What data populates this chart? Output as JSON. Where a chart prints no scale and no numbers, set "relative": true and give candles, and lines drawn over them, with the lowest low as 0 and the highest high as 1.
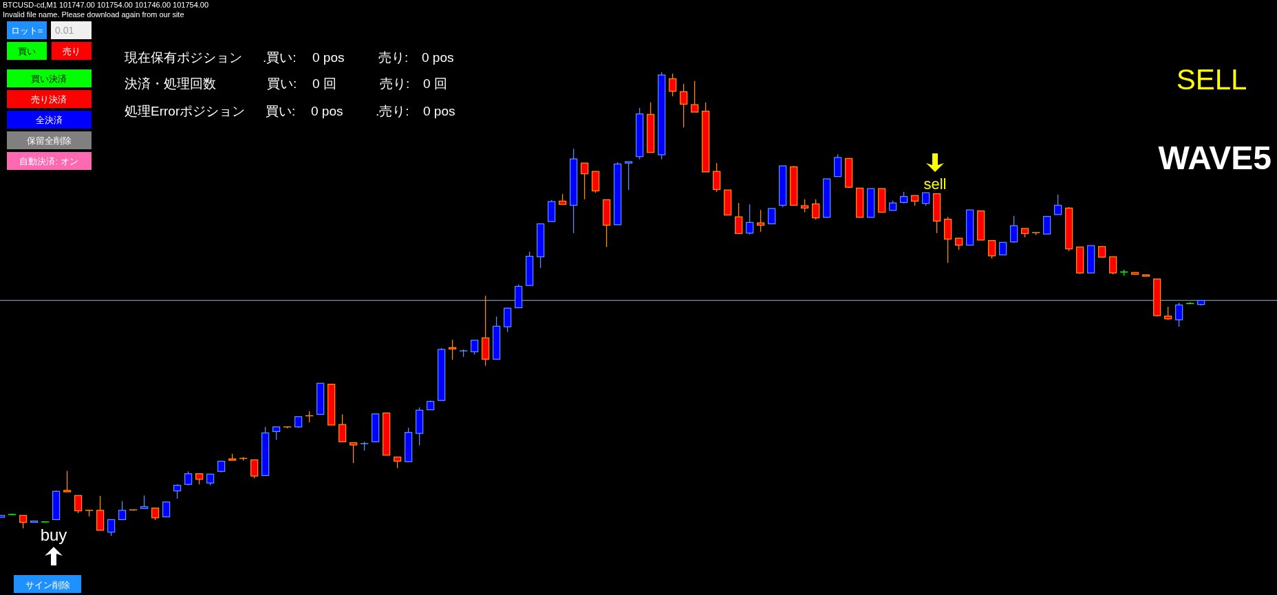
{
  "chart_data": {
    "type": "candlestick",
    "relative": true,
    "categories": [
      null,
      null,
      null,
      null,
      null,
      null,
      null,
      null,
      null,
      null,
      null,
      null,
      null,
      null,
      null,
      null,
      null,
      null,
      null,
      null,
      null,
      null,
      null,
      null,
      null,
      null,
      null,
      null,
      null,
      null,
      null,
      null,
      null,
      null,
      null,
      null,
      null,
      null,
      null,
      null,
      null,
      null,
      null,
      null,
      null,
      null,
      null,
      null,
      null,
      null,
      null,
      null,
      null,
      null,
      null,
      null,
      null,
      null,
      null,
      null,
      null,
      null,
      null,
      null,
      null,
      null,
      null,
      null,
      null,
      null,
      null,
      null,
      null,
      null,
      null,
      null,
      null,
      null,
      null,
      null,
      null,
      null,
      null,
      null,
      null,
      null,
      null,
      null,
      null,
      null,
      null,
      null,
      null,
      null,
      null,
      null,
      null,
      null,
      null,
      null,
      null,
      null,
      null,
      null,
      null,
      null,
      null,
      null,
      null,
      null
    ],
    "ohlc": [
      [
        0.04,
        0.044,
        0.04,
        0.044
      ],
      [
        0.046,
        0.047,
        0.045,
        0.046
      ],
      [
        0.044,
        0.044,
        0.016,
        0.029
      ],
      [
        0.029,
        0.032,
        0.029,
        0.032
      ],
      [
        0.03,
        0.031,
        0.029,
        0.03
      ],
      [
        0.035,
        0.098,
        0.035,
        0.096
      ],
      [
        0.098,
        0.14,
        0.095,
        0.095
      ],
      [
        0.087,
        0.087,
        0.049,
        0.054
      ],
      [
        0.055,
        0.055,
        0.042,
        0.054
      ],
      [
        0.055,
        0.086,
        0.012,
        0.012
      ],
      [
        0.008,
        0.035,
        0,
        0.035
      ],
      [
        0.035,
        0.075,
        0.035,
        0.055
      ],
      [
        0.056,
        0.056,
        0.054,
        0.055
      ],
      [
        0.059,
        0.087,
        0.059,
        0.063
      ],
      [
        0.06,
        0.06,
        0.034,
        0.039
      ],
      [
        0.041,
        0.073,
        0.041,
        0.073
      ],
      [
        0.097,
        0.111,
        0.08,
        0.109
      ],
      [
        0.111,
        0.139,
        0.109,
        0.134
      ],
      [
        0.134,
        0.134,
        0.111,
        0.122
      ],
      [
        0.114,
        0.134,
        0.109,
        0.133
      ],
      [
        0.139,
        0.161,
        0.137,
        0.161
      ],
      [
        0.166,
        0.177,
        0.163,
        0.163
      ],
      [
        0.167,
        0.17,
        0.162,
        0.166
      ],
      [
        0.164,
        0.164,
        0.124,
        0.129
      ],
      [
        0.13,
        0.235,
        0.13,
        0.222
      ],
      [
        0.225,
        0.235,
        0.207,
        0.235
      ],
      [
        0.235,
        0.236,
        0.232,
        0.234
      ],
      [
        0.235,
        0.257,
        0.233,
        0.257
      ],
      [
        0.259,
        0.269,
        0.245,
        0.258
      ],
      [
        0.262,
        0.329,
        0.262,
        0.329
      ],
      [
        0.327,
        0.327,
        0.239,
        0.239
      ],
      [
        0.24,
        0.262,
        0.203,
        0.203
      ],
      [
        0.201,
        0.201,
        0.157,
        0.196
      ],
      [
        0.198,
        0.203,
        0.184,
        0.199
      ],
      [
        0.203,
        0.263,
        0.203,
        0.263
      ],
      [
        0.265,
        0.266,
        0.174,
        0.174
      ],
      [
        0.17,
        0.17,
        0.146,
        0.161
      ],
      [
        0.16,
        0.233,
        0.159,
        0.223
      ],
      [
        0.221,
        0.277,
        0.195,
        0.271
      ],
      [
        0.272,
        0.292,
        0.272,
        0.29
      ],
      [
        0.292,
        0.405,
        0.292,
        0.402
      ],
      [
        0.406,
        0.423,
        0.38,
        0.403
      ],
      [
        0.398,
        0.402,
        0.386,
        0.399
      ],
      [
        0.397,
        0.422,
        0.391,
        0.422
      ],
      [
        0.427,
        0.518,
        0.367,
        0.381
      ],
      [
        0.381,
        0.473,
        0.381,
        0.452
      ],
      [
        0.451,
        0.492,
        0.44,
        0.491
      ],
      [
        0.492,
        0.542,
        0.492,
        0.538
      ],
      [
        0.54,
        0.613,
        0.54,
        0.603
      ],
      [
        0.602,
        0.673,
        0.578,
        0.673
      ],
      [
        0.678,
        0.724,
        0.678,
        0.721
      ],
      [
        0.722,
        0.737,
        0.715,
        0.715
      ],
      [
        0.713,
        0.835,
        0.653,
        0.813
      ],
      [
        0.804,
        0.804,
        0.726,
        0.781
      ],
      [
        0.786,
        0.786,
        0.74,
        0.744
      ],
      [
        0.725,
        0.725,
        0.623,
        0.67
      ],
      [
        0.671,
        0.806,
        0.671,
        0.802
      ],
      [
        0.804,
        0.807,
        0.746,
        0.807
      ],
      [
        0.818,
        0.923,
        0.812,
        0.91
      ],
      [
        0.909,
        0.935,
        0.827,
        0.827
      ],
      [
        0.822,
        1,
        0.812,
        0.994
      ],
      [
        0.986,
        0.997,
        0.948,
        0.959
      ],
      [
        0.958,
        0.975,
        0.881,
        0.931
      ],
      [
        0.93,
        0.981,
        0.914,
        0.914
      ],
      [
        0.916,
        0.935,
        0.785,
        0.785
      ],
      [
        0.786,
        0.804,
        0.742,
        0.747
      ],
      [
        0.746,
        0.746,
        0.692,
        0.692
      ],
      [
        0.688,
        0.718,
        0.652,
        0.652
      ],
      [
        0.653,
        0.715,
        0.65,
        0.676
      ],
      [
        0.675,
        0.703,
        0.656,
        0.67
      ],
      [
        0.673,
        0.706,
        0.673,
        0.706
      ],
      [
        0.713,
        0.798,
        0.709,
        0.798
      ],
      [
        0.796,
        0.798,
        0.713,
        0.713
      ],
      [
        0.712,
        0.726,
        0.698,
        0.707
      ],
      [
        0.716,
        0.726,
        0.682,
        0.686
      ],
      [
        0.687,
        0.77,
        0.687,
        0.77
      ],
      [
        0.775,
        0.823,
        0.775,
        0.816
      ],
      [
        0.814,
        0.814,
        0.75,
        0.752
      ],
      [
        0.75,
        0.75,
        0.687,
        0.687
      ],
      [
        0.687,
        0.749,
        0.687,
        0.749
      ],
      [
        0.749,
        0.749,
        0.698,
        0.698
      ],
      [
        0.702,
        0.723,
        0.702,
        0.718
      ],
      [
        0.719,
        0.742,
        0.717,
        0.732
      ],
      [
        0.734,
        0.734,
        0.712,
        0.722
      ],
      [
        0.717,
        0.74,
        0.712,
        0.74
      ],
      [
        0.738,
        0.738,
        0.653,
        0.679
      ],
      [
        0.683,
        0.688,
        0.589,
        0.64
      ],
      [
        0.642,
        0.643,
        0.617,
        0.627
      ],
      [
        0.627,
        0.703,
        0.627,
        0.703
      ],
      [
        0.701,
        0.701,
        0.638,
        0.638
      ],
      [
        0.637,
        0.637,
        0.598,
        0.604
      ],
      [
        0.606,
        0.633,
        0.606,
        0.633
      ],
      [
        0.634,
        0.69,
        0.632,
        0.669
      ],
      [
        0.663,
        0.663,
        0.644,
        0.652
      ],
      [
        0.654,
        0.654,
        0.649,
        0.653
      ],
      [
        0.651,
        0.689,
        0.651,
        0.689
      ],
      [
        0.693,
        0.736,
        0.693,
        0.713
      ],
      [
        0.707,
        0.709,
        0.614,
        0.619
      ],
      [
        0.623,
        0.623,
        0.565,
        0.567
      ],
      [
        0.567,
        0.626,
        0.567,
        0.626
      ],
      [
        0.624,
        0.624,
        0.601,
        0.601
      ],
      [
        0.602,
        0.602,
        0.564,
        0.567
      ],
      [
        0.569,
        0.574,
        0.561,
        0.569
      ],
      [
        0.568,
        0.568,
        0.564,
        0.564
      ],
      [
        0.563,
        0.563,
        0.56,
        0.56
      ],
      [
        0.554,
        0.554,
        0.473,
        0.475
      ],
      [
        0.474,
        0.494,
        0.466,
        0.468
      ],
      [
        0.466,
        0.503,
        0.451,
        0.498
      ],
      [
        0.501,
        0.504,
        0.5,
        0.501
      ],
      [
        0.499,
        0.508,
        0.497,
        0.508
      ]
    ],
    "colors": [
      "#0000ff",
      "#00ff00",
      "#ff0000",
      "#0000ff",
      "#00ff00",
      "#0000ff",
      "#ff0000",
      "#ff0000",
      "#ff8c00",
      "#ff0000",
      "#0000ff",
      "#0000ff",
      "#ff8c00",
      "#0000ff",
      "#ff0000",
      "#0000ff",
      "#0000ff",
      "#0000ff",
      "#ff0000",
      "#0000ff",
      "#0000ff",
      "#ff0000",
      "#ff8c00",
      "#ff0000",
      "#0000ff",
      "#0000ff",
      "#ff8c00",
      "#0000ff",
      "#ff8c00",
      "#0000ff",
      "#ff0000",
      "#ff0000",
      "#ff0000",
      "#5a8cff",
      "#0000ff",
      "#ff0000",
      "#ff0000",
      "#0000ff",
      "#0000ff",
      "#0000ff",
      "#0000ff",
      "#ff0000",
      "#5a8cff",
      "#0000ff",
      "#ff0000",
      "#0000ff",
      "#0000ff",
      "#0000ff",
      "#0000ff",
      "#0000ff",
      "#0000ff",
      "#ff0000",
      "#0000ff",
      "#ff0000",
      "#ff0000",
      "#ff0000",
      "#0000ff",
      "#0000ff",
      "#0000ff",
      "#ff0000",
      "#0000ff",
      "#ff0000",
      "#ff0000",
      "#ff0000",
      "#ff0000",
      "#ff0000",
      "#ff0000",
      "#ff0000",
      "#0000ff",
      "#ff0000",
      "#0000ff",
      "#0000ff",
      "#ff0000",
      "#ff0000",
      "#ff0000",
      "#0000ff",
      "#0000ff",
      "#ff0000",
      "#ff0000",
      "#0000ff",
      "#ff0000",
      "#0000ff",
      "#0000ff",
      "#ff0000",
      "#0000ff",
      "#ff0000",
      "#ff0000",
      "#ff0000",
      "#0000ff",
      "#ff0000",
      "#ff0000",
      "#0000ff",
      "#0000ff",
      "#ff0000",
      "#ff8c00",
      "#0000ff",
      "#0000ff",
      "#ff0000",
      "#ff0000",
      "#0000ff",
      "#ff0000",
      "#ff0000",
      "#00ff00",
      "#ff0000",
      "#ff0000",
      "#ff0000",
      "#ff0000",
      "#0000ff",
      "#00ff00",
      "#0000ff"
    ],
    "ref_lines": [
      {
        "axis": "y",
        "value": 0.508,
        "color": "#7f93a8"
      }
    ],
    "annotations": [
      "BTCUSD-cd,M1  101747.00 101754.00 101746.00 101754.00",
      "Invalid file name. Please download again from our site",
      "ロット=",
      "0.01",
      "買い",
      "売り",
      "買い決済",
      "売り決済",
      "全決済",
      "保留全削除",
      "自動決済: オン",
      "現在保有ポジション",
      ".買い:",
      "0 pos",
      "売り:",
      "0 pos",
      "決済・処理回数",
      "買い:",
      "0 回",
      "売り:",
      "0 回",
      "処理Errorポジション",
      "買い:",
      "0 pos",
      ".売り:",
      "0 pos",
      "SELL",
      "WAVE5",
      "buy",
      "sell",
      "サイン削除"
    ]
  }
}
